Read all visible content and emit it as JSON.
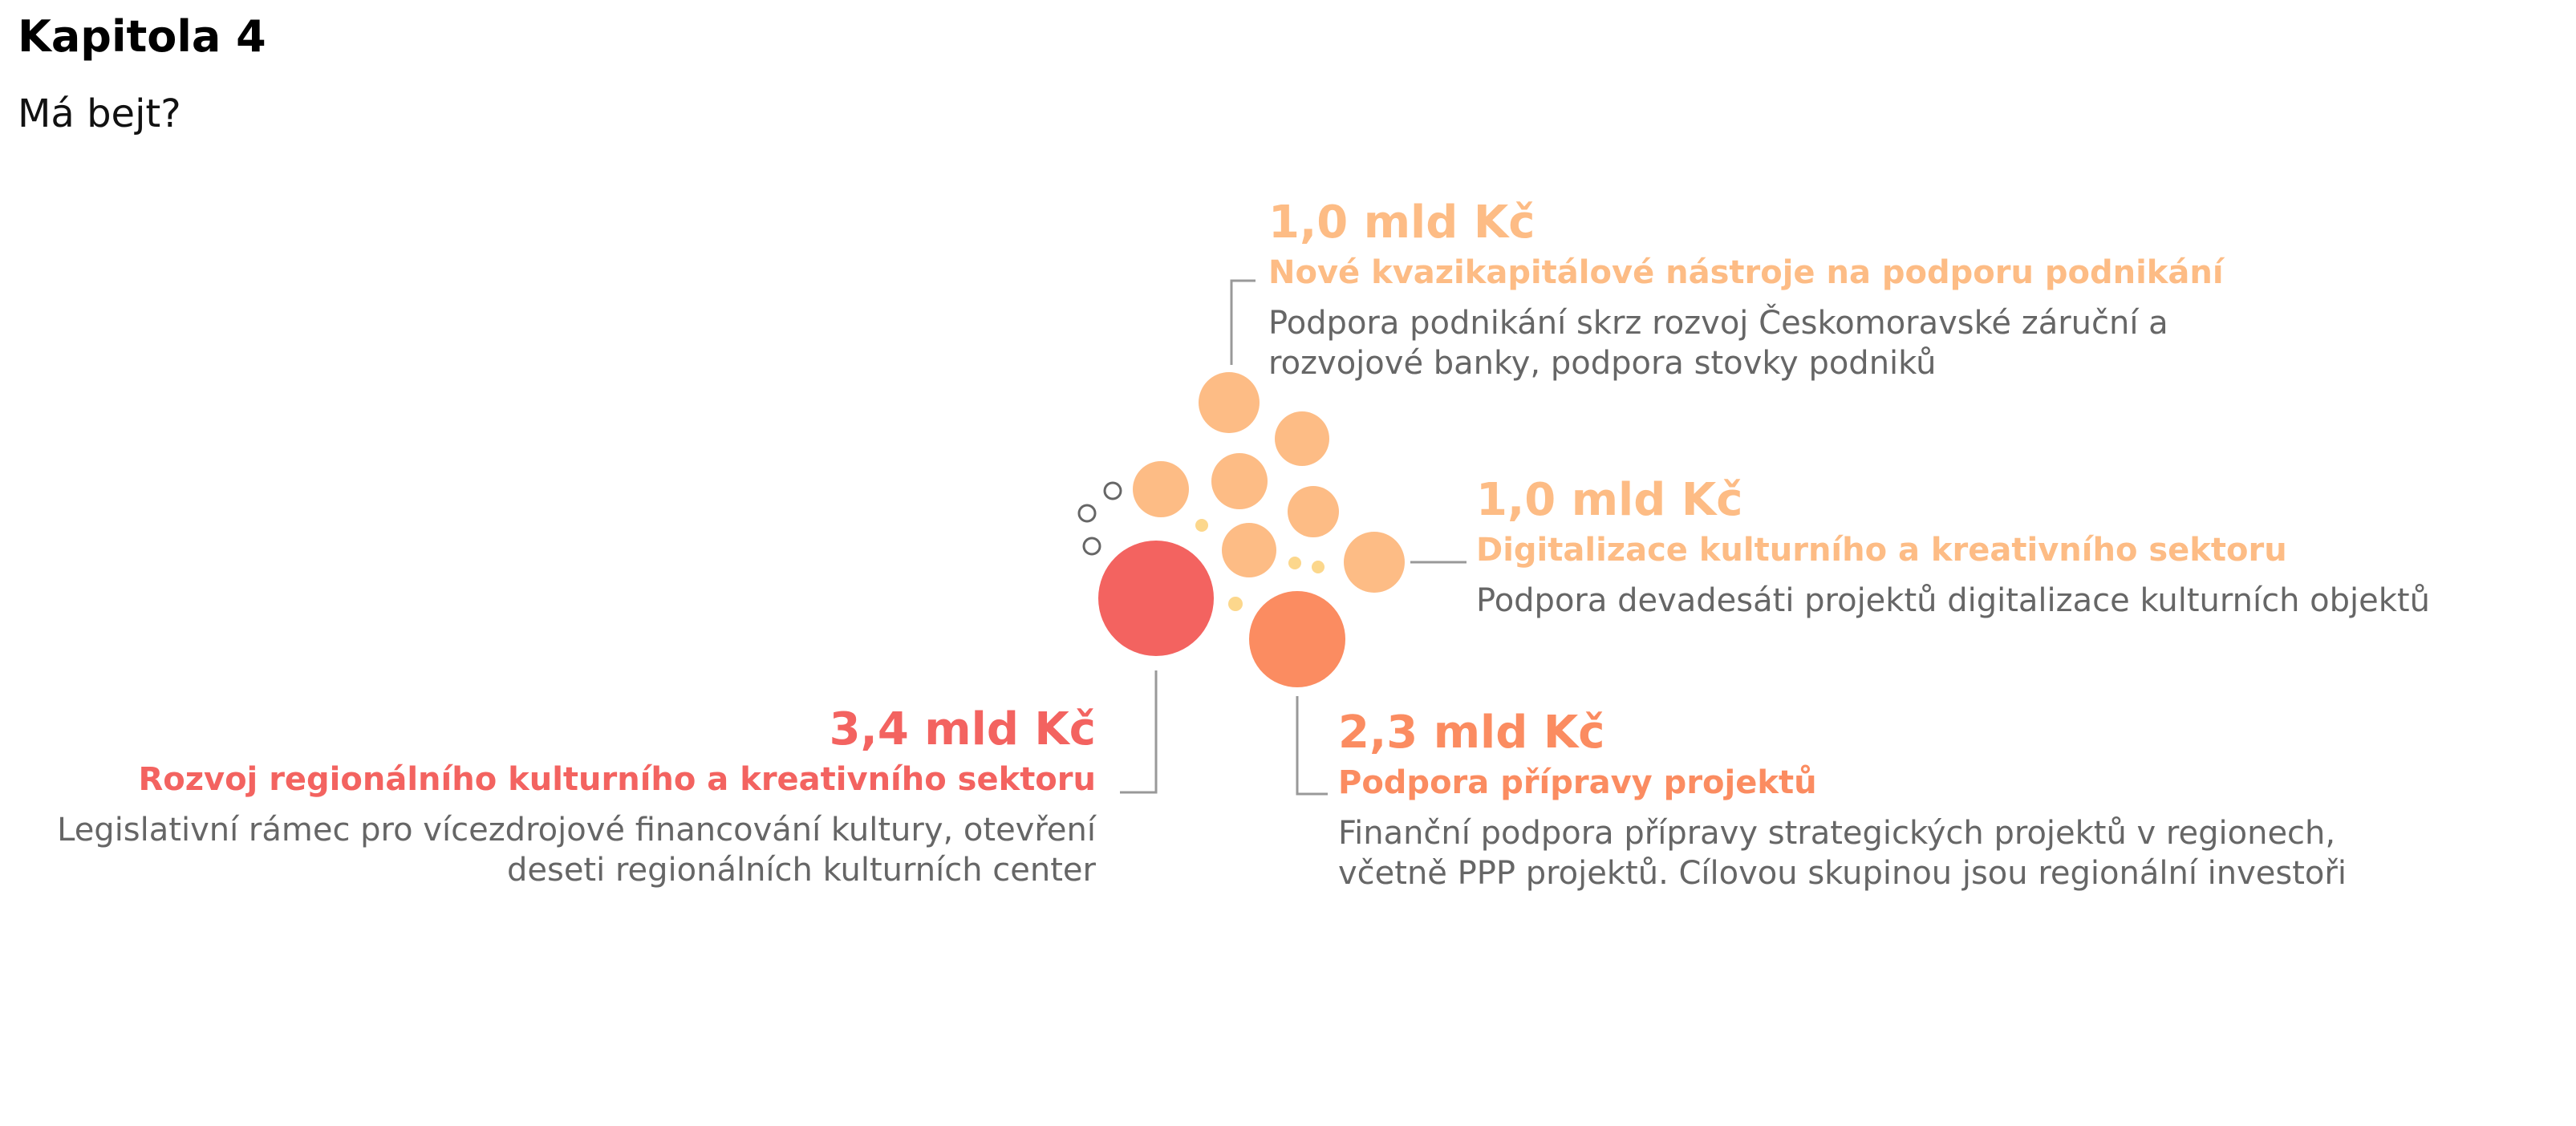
{
  "header": {
    "title": "Kapitola 4",
    "subtitle": "Má bejt?"
  },
  "colors": {
    "light_orange": "#fdbc85",
    "orange": "#fb8c61",
    "red": "#f36360",
    "yellow": "#fcd78c",
    "outline": "#666666",
    "connector": "#999999",
    "text_gray": "#666666"
  },
  "items": [
    {
      "amount": "1,0 mld Kč",
      "heading": "Nové kvazikapitálové nástroje na podporu podnikání",
      "desc_lines": [
        "Podpora podnikání skrz rozvoj Českomoravské záruční a",
        "rozvojové banky, podpora stovky podniků"
      ],
      "color": "#fdbc85"
    },
    {
      "amount": "1,0 mld Kč",
      "heading": "Digitalizace kulturního a kreativního sektoru",
      "desc_lines": [
        "Podpora devadesáti projektů digitalizace kulturních objektů"
      ],
      "color": "#fdbc85"
    },
    {
      "amount": "3,4 mld Kč",
      "heading": "Rozvoj regionálního kulturního a kreativního sektoru",
      "desc_lines": [
        "Legislativní rámec pro vícezdrojové financování kultury, otevření",
        "deseti regionálních kulturních center"
      ],
      "color": "#f36360"
    },
    {
      "amount": "2,3 mld Kč",
      "heading": "Podpora přípravy projektů",
      "desc_lines": [
        "Finanční podpora přípravy strategických projektů v regionech,",
        "včetně PPP projektů. Cílovou skupinou jsou regionální investoři"
      ],
      "color": "#fb8c61"
    }
  ]
}
